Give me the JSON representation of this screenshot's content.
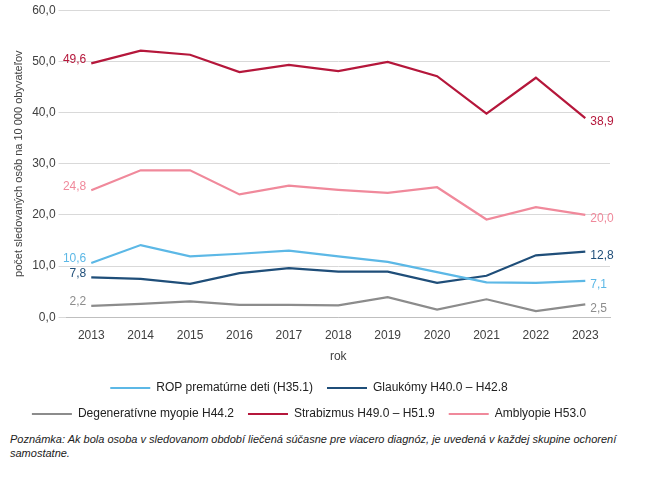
{
  "chart_data": {
    "type": "line",
    "y_label": "počet sledovaných osôb na 10 000 obyvateľov",
    "x_label": "rok",
    "note": "Poznámka: Ak bola osoba v sledovanom období liečená súčasne pre viacero diagnóz, je uvedená v každej skupine ochorení samostatne.",
    "categories": [
      "2013",
      "2014",
      "2015",
      "2016",
      "2017",
      "2018",
      "2019",
      "2020",
      "2021",
      "2022",
      "2023"
    ],
    "series": [
      {
        "name": "ROP prematúrne deti (H35.1)",
        "color": "#5cb8e6",
        "values": [
          10.6,
          14.1,
          11.9,
          12.4,
          13.0,
          11.9,
          10.8,
          8.8,
          6.8,
          6.7,
          7.1
        ],
        "value_labels": [
          "10,6",
          null,
          null,
          null,
          null,
          null,
          null,
          null,
          null,
          null,
          "7,1"
        ]
      },
      {
        "name": "Glaukómy H40.0 – H42.8",
        "color": "#1f4e79",
        "values": [
          7.8,
          7.5,
          6.5,
          8.6,
          9.6,
          8.9,
          8.9,
          6.7,
          8.1,
          12.1,
          12.8
        ],
        "value_labels": [
          "7,8",
          null,
          null,
          null,
          null,
          null,
          null,
          null,
          null,
          null,
          "12,8"
        ]
      },
      {
        "name": "Degeneratívne myopie H44.2",
        "color": "#8c8c8c",
        "values": [
          2.2,
          2.6,
          3.1,
          2.4,
          2.4,
          2.3,
          3.9,
          1.5,
          3.5,
          1.2,
          2.5
        ],
        "value_labels": [
          "2,2",
          null,
          null,
          null,
          null,
          null,
          null,
          null,
          null,
          null,
          "2,5"
        ]
      },
      {
        "name": "Strabizmus H49.0 – H51.9",
        "color": "#b5173b",
        "values": [
          49.6,
          52.1,
          51.3,
          47.9,
          49.3,
          48.1,
          49.9,
          47.1,
          39.8,
          46.8,
          38.9
        ],
        "value_labels": [
          "49,6",
          null,
          null,
          null,
          null,
          null,
          null,
          null,
          null,
          null,
          "38,9"
        ]
      },
      {
        "name": "Amblyopie H53.0",
        "color": "#f0899b",
        "values": [
          24.8,
          28.7,
          28.7,
          24.0,
          25.7,
          24.9,
          24.3,
          25.4,
          19.1,
          21.5,
          20.0
        ],
        "value_labels": [
          "24,8",
          null,
          null,
          null,
          null,
          null,
          null,
          null,
          null,
          null,
          "20,0"
        ]
      }
    ],
    "ylim": [
      0,
      60
    ],
    "yticks": [
      {
        "value": 0,
        "label": "0,0"
      },
      {
        "value": 10,
        "label": "10,0"
      },
      {
        "value": 20,
        "label": "20,0"
      },
      {
        "value": 30,
        "label": "30,0"
      },
      {
        "value": 40,
        "label": "40,0"
      },
      {
        "value": 50,
        "label": "50,0"
      },
      {
        "value": 60,
        "label": "60,0"
      }
    ],
    "grid": true,
    "legend": "bottom",
    "data_labels": true,
    "marker": "none",
    "line_style": "solid"
  }
}
